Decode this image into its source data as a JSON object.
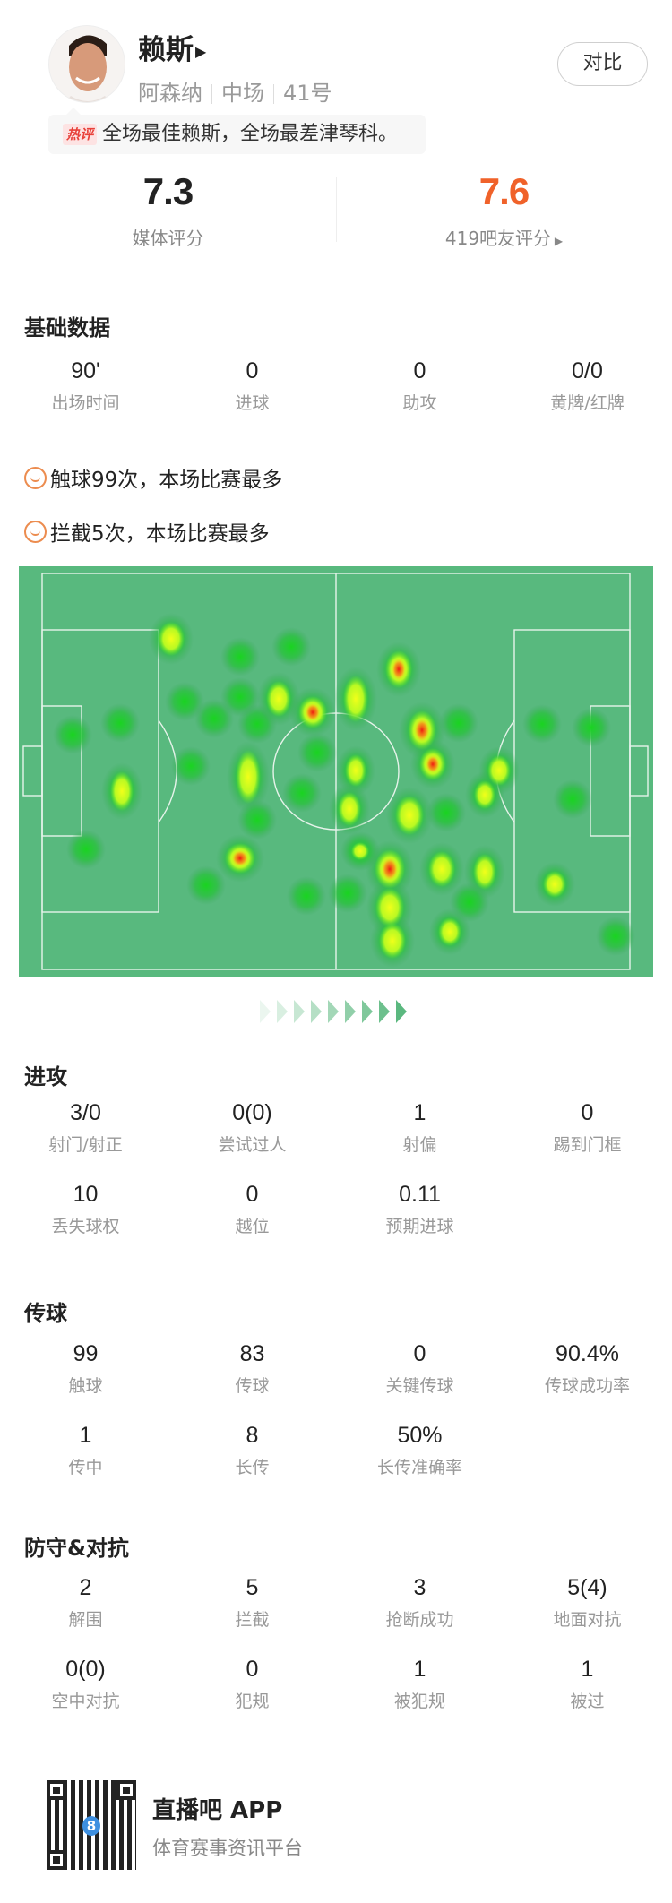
{
  "player": {
    "name": "赖斯",
    "club": "阿森纳",
    "position": "中场",
    "number": "41号",
    "compare_label": "对比"
  },
  "hot_comment": {
    "tag": "热评",
    "text": "全场最佳赖斯，全场最差津琴科。"
  },
  "ratings": {
    "media": {
      "value": "7.3",
      "label": "媒体评分"
    },
    "fans": {
      "value": "7.6",
      "label": "419吧友评分",
      "color": "#f0622a"
    }
  },
  "basic": {
    "title": "基础数据",
    "items": [
      {
        "v": "90'",
        "l": "出场时间"
      },
      {
        "v": "0",
        "l": "进球"
      },
      {
        "v": "0",
        "l": "助攻"
      },
      {
        "v": "0/0",
        "l": "黄牌/红牌"
      }
    ]
  },
  "highlights": [
    "触球99次，本场比赛最多",
    "拦截5次，本场比赛最多"
  ],
  "attack": {
    "title": "进攻",
    "items": [
      {
        "v": "3/0",
        "l": "射门/射正"
      },
      {
        "v": "0(0)",
        "l": "尝试过人"
      },
      {
        "v": "1",
        "l": "射偏"
      },
      {
        "v": "0",
        "l": "踢到门框"
      },
      {
        "v": "10",
        "l": "丢失球权"
      },
      {
        "v": "0",
        "l": "越位"
      },
      {
        "v": "0.11",
        "l": "预期进球"
      }
    ]
  },
  "passing": {
    "title": "传球",
    "items": [
      {
        "v": "99",
        "l": "触球"
      },
      {
        "v": "83",
        "l": "传球"
      },
      {
        "v": "0",
        "l": "关键传球"
      },
      {
        "v": "90.4%",
        "l": "传球成功率"
      },
      {
        "v": "1",
        "l": "传中"
      },
      {
        "v": "8",
        "l": "长传"
      },
      {
        "v": "50%",
        "l": "长传准确率"
      }
    ]
  },
  "defense": {
    "title": "防守&对抗",
    "items": [
      {
        "v": "2",
        "l": "解围"
      },
      {
        "v": "5",
        "l": "拦截"
      },
      {
        "v": "3",
        "l": "抢断成功"
      },
      {
        "v": "5(4)",
        "l": "地面对抗"
      },
      {
        "v": "0(0)",
        "l": "空中对抗"
      },
      {
        "v": "0",
        "l": "犯规"
      },
      {
        "v": "1",
        "l": "被犯规"
      },
      {
        "v": "1",
        "l": "被过"
      }
    ]
  },
  "footer": {
    "app_name": "直播吧 APP",
    "tagline": "体育赛事资讯平台"
  },
  "colors": {
    "pitch": "#58b97e",
    "accent": "#f0622a",
    "highlight_icon": "#ec8c4f"
  }
}
